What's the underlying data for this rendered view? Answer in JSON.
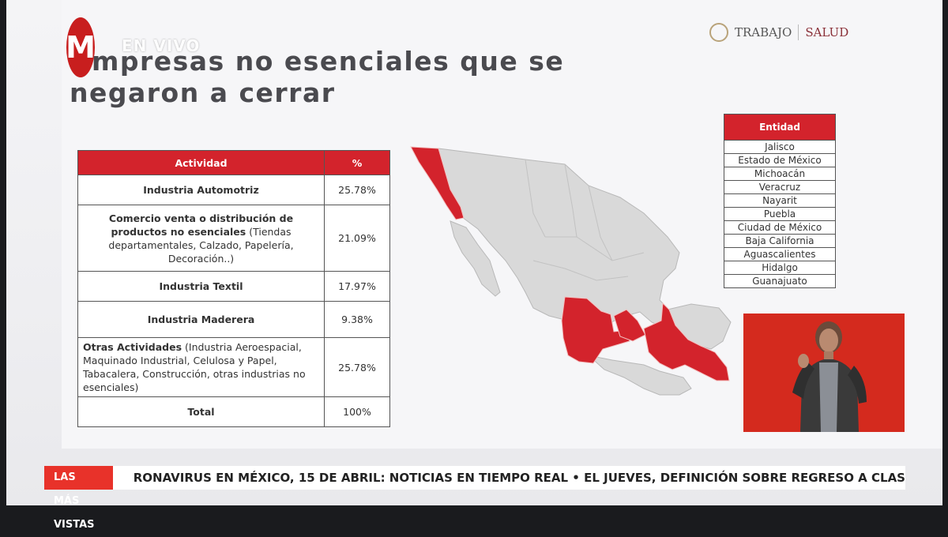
{
  "broadcast": {
    "logo_letter": "M",
    "live_label": "EN VIVO"
  },
  "slide": {
    "title_line1": "mpresas no esenciales que se",
    "title_line2": "negaron a cerrar",
    "gov_primary": "TRABAJO",
    "gov_secondary": "SALUD"
  },
  "activity_table": {
    "headers": [
      "Actividad",
      "%"
    ],
    "rows": [
      {
        "main": "Industria Automotriz",
        "detail": "",
        "pct": "25.78%"
      },
      {
        "main": "Comercio venta o distribución de productos no esenciales",
        "detail": "(Tiendas departamentales, Calzado, Papelería, Decoración..)",
        "pct": "21.09%"
      },
      {
        "main": "Industria Textil",
        "detail": "",
        "pct": "17.97%"
      },
      {
        "main": "Industria Maderera",
        "detail": "",
        "pct": "9.38%"
      },
      {
        "main": "Otras Actividades",
        "detail": "(Industria Aeroespacial, Maquinado Industrial, Celulosa y Papel, Tabacalera, Construcción, otras industrias no esenciales)",
        "pct": "25.78%"
      },
      {
        "main": "Total",
        "detail": "",
        "pct": "100%"
      }
    ]
  },
  "entity_table": {
    "header": "Entidad",
    "items": [
      "Jalisco",
      "Estado de México",
      "Michoacán",
      "Veracruz",
      "Nayarit",
      "Puebla",
      "Ciudad de México",
      "Baja California",
      "Aguascalientes",
      "Hidalgo",
      "Guanajuato"
    ]
  },
  "map": {
    "highlight_color": "#d3232c",
    "base_color": "#d9d9d9"
  },
  "ticker": {
    "label": "LAS MÁS VISTAS",
    "text": "RONAVIRUS EN MÉXICO, 15 DE ABRIL: NOTICIAS EN TIEMPO REAL  •  EL JUEVES, DEFINICIÓN SOBRE REGRESO A CLAS"
  }
}
